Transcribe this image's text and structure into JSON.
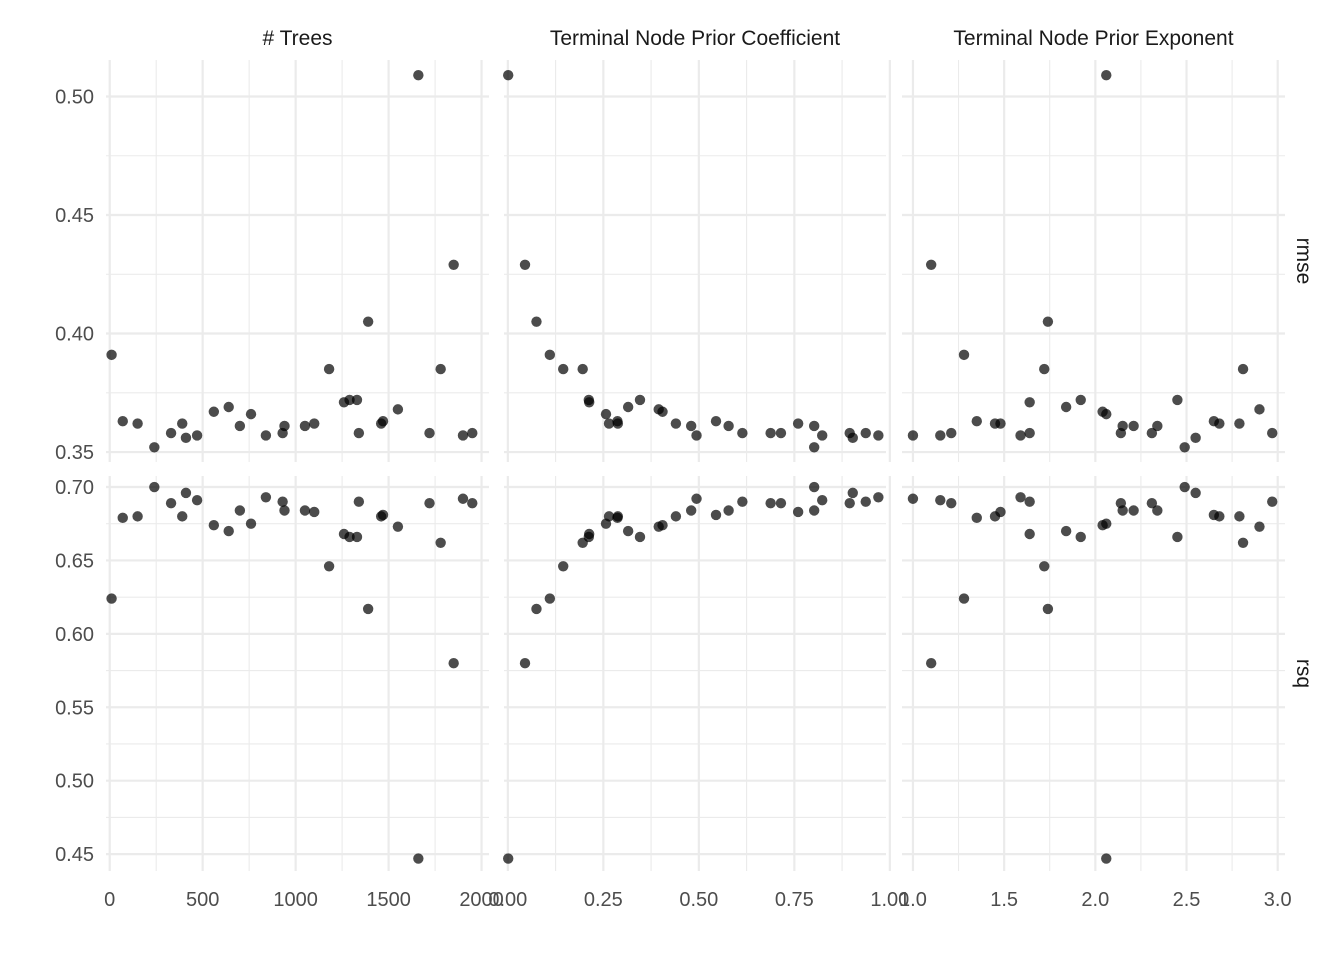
{
  "chart_data": {
    "type": "scatter",
    "facet_columns": [
      "# Trees",
      "Terminal Node Prior Coefficient",
      "Terminal Node Prior Exponent"
    ],
    "facet_rows": [
      "rmse",
      "rsq"
    ],
    "grid": true,
    "legend": "none",
    "x_axes": [
      {
        "xlim": [
          -20,
          2040
        ],
        "breaks": [
          0,
          500,
          1000,
          1500,
          2000
        ],
        "tick_labels": [
          "0",
          "500",
          "1000",
          "1500",
          "2000"
        ]
      },
      {
        "xlim": [
          -0.01,
          0.99
        ],
        "breaks": [
          0,
          0.25,
          0.5,
          0.75,
          1.0
        ],
        "tick_labels": [
          "0.00",
          "0.25",
          "0.50",
          "0.75",
          "1.00"
        ]
      },
      {
        "xlim": [
          0.94,
          3.04
        ],
        "breaks": [
          1.0,
          1.5,
          2.0,
          2.5,
          3.0
        ],
        "tick_labels": [
          "1.0",
          "1.5",
          "2.0",
          "2.5",
          "3.0"
        ]
      }
    ],
    "y_axes": [
      {
        "ylim": [
          0.3458,
          0.5154
        ],
        "breaks": [
          0.35,
          0.4,
          0.45,
          0.5
        ],
        "tick_labels": [
          "0.35",
          "0.40",
          "0.45",
          "0.50"
        ]
      },
      {
        "ylim": [
          0.4385,
          0.7075
        ],
        "breaks": [
          0.45,
          0.5,
          0.55,
          0.6,
          0.65,
          0.7
        ],
        "tick_labels": [
          "0.45",
          "0.50",
          "0.55",
          "0.60",
          "0.65",
          "0.70"
        ]
      }
    ],
    "configs": [
      {
        "trees": 1660,
        "cost": 0.001,
        "exponent": 2.06,
        "rmse": 0.509,
        "rsq": 0.447
      },
      {
        "trees": 1850,
        "cost": 0.045,
        "exponent": 1.1,
        "rmse": 0.429,
        "rsq": 0.58
      },
      {
        "trees": 1390,
        "cost": 0.075,
        "exponent": 1.74,
        "rmse": 0.405,
        "rsq": 0.617
      },
      {
        "trees": 10,
        "cost": 0.11,
        "exponent": 1.28,
        "rmse": 0.391,
        "rsq": 0.624
      },
      {
        "trees": 1780,
        "cost": 0.196,
        "exponent": 2.81,
        "rmse": 0.385,
        "rsq": 0.662
      },
      {
        "trees": 1180,
        "cost": 0.145,
        "exponent": 1.72,
        "rmse": 0.385,
        "rsq": 0.646
      },
      {
        "trees": 1260,
        "cost": 0.213,
        "exponent": 1.64,
        "rmse": 0.371,
        "rsq": 0.668
      },
      {
        "trees": 1330,
        "cost": 0.212,
        "exponent": 1.92,
        "rmse": 0.372,
        "rsq": 0.666
      },
      {
        "trees": 1290,
        "cost": 0.346,
        "exponent": 2.45,
        "rmse": 0.372,
        "rsq": 0.666
      },
      {
        "trees": 640,
        "cost": 0.315,
        "exponent": 1.84,
        "rmse": 0.369,
        "rsq": 0.67
      },
      {
        "trees": 760,
        "cost": 0.257,
        "exponent": 2.06,
        "rmse": 0.366,
        "rsq": 0.675
      },
      {
        "trees": 560,
        "cost": 0.405,
        "exponent": 2.04,
        "rmse": 0.367,
        "rsq": 0.674
      },
      {
        "trees": 1550,
        "cost": 0.395,
        "exponent": 2.9,
        "rmse": 0.368,
        "rsq": 0.673
      },
      {
        "trees": 70,
        "cost": 0.287,
        "exponent": 1.35,
        "rmse": 0.363,
        "rsq": 0.679
      },
      {
        "trees": 1460,
        "cost": 0.288,
        "exponent": 1.45,
        "rmse": 0.362,
        "rsq": 0.68
      },
      {
        "trees": 1470,
        "cost": 0.545,
        "exponent": 2.65,
        "rmse": 0.363,
        "rsq": 0.681
      },
      {
        "trees": 150,
        "cost": 0.44,
        "exponent": 2.68,
        "rmse": 0.362,
        "rsq": 0.68
      },
      {
        "trees": 390,
        "cost": 0.265,
        "exponent": 2.79,
        "rmse": 0.362,
        "rsq": 0.68
      },
      {
        "trees": 700,
        "cost": 0.578,
        "exponent": 2.15,
        "rmse": 0.361,
        "rsq": 0.684
      },
      {
        "trees": 1050,
        "cost": 0.48,
        "exponent": 2.34,
        "rmse": 0.361,
        "rsq": 0.684
      },
      {
        "trees": 1100,
        "cost": 0.76,
        "exponent": 1.48,
        "rmse": 0.362,
        "rsq": 0.683
      },
      {
        "trees": 940,
        "cost": 0.802,
        "exponent": 2.21,
        "rmse": 0.361,
        "rsq": 0.684
      },
      {
        "trees": 330,
        "cost": 0.895,
        "exponent": 2.31,
        "rmse": 0.358,
        "rsq": 0.689
      },
      {
        "trees": 1720,
        "cost": 0.688,
        "exponent": 1.21,
        "rmse": 0.358,
        "rsq": 0.689
      },
      {
        "trees": 1950,
        "cost": 0.715,
        "exponent": 2.14,
        "rmse": 0.358,
        "rsq": 0.689
      },
      {
        "trees": 1340,
        "cost": 0.937,
        "exponent": 2.97,
        "rmse": 0.358,
        "rsq": 0.69
      },
      {
        "trees": 930,
        "cost": 0.614,
        "exponent": 1.64,
        "rmse": 0.358,
        "rsq": 0.69
      },
      {
        "trees": 470,
        "cost": 0.823,
        "exponent": 1.15,
        "rmse": 0.357,
        "rsq": 0.691
      },
      {
        "trees": 1900,
        "cost": 0.494,
        "exponent": 1.0,
        "rmse": 0.357,
        "rsq": 0.692
      },
      {
        "trees": 840,
        "cost": 0.97,
        "exponent": 1.59,
        "rmse": 0.357,
        "rsq": 0.693
      },
      {
        "trees": 410,
        "cost": 0.903,
        "exponent": 2.55,
        "rmse": 0.356,
        "rsq": 0.696
      },
      {
        "trees": 240,
        "cost": 0.802,
        "exponent": 2.49,
        "rmse": 0.352,
        "rsq": 0.7
      }
    ]
  }
}
